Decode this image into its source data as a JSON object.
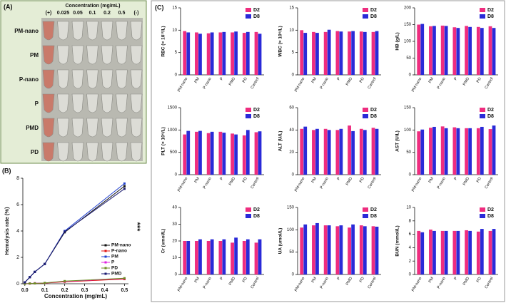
{
  "panel_a": {
    "label": "(A)",
    "title": "Concentration (mg/mL)",
    "concentrations": [
      "(+)",
      "0.025",
      "0.05",
      "0.1",
      "0.2",
      "0.5",
      "(-)"
    ],
    "rows": [
      "PM-nano",
      "PM",
      "P-nano",
      "P",
      "PMD",
      "PD"
    ]
  },
  "panel_b_label": "(B)",
  "panel_c_label": "(C)",
  "chart_data": [
    {
      "type": "line",
      "xlabel": "Concentration (mg/mL)",
      "ylabel": "Hemolysis rate (%)",
      "annotation": "***",
      "x": [
        0,
        0.025,
        0.05,
        0.1,
        0.2,
        0.5
      ],
      "xlim": [
        -0.01,
        0.52
      ],
      "xticks": [
        {
          "value": 0,
          "label": "0.0"
        },
        0.1,
        0.2,
        0.3,
        0.4,
        0.5
      ],
      "ylim": [
        0,
        8
      ],
      "yticks": [
        0,
        2,
        4,
        6,
        8
      ],
      "series": [
        {
          "name": "PM-nano",
          "color": "#111111",
          "values": [
            0.1,
            0.5,
            0.9,
            1.5,
            3.9,
            7.4
          ]
        },
        {
          "name": "P-nano",
          "color": "#e01010",
          "values": [
            0,
            0.02,
            0.03,
            0.05,
            0.15,
            0.35
          ]
        },
        {
          "name": "PM",
          "color": "#1f3fd0",
          "values": [
            0.1,
            0.5,
            0.9,
            1.5,
            4.0,
            7.6
          ]
        },
        {
          "name": "P",
          "color": "#e020e0",
          "values": [
            0,
            0.02,
            0.04,
            0.06,
            0.18,
            0.4
          ]
        },
        {
          "name": "PD",
          "color": "#6b8e23",
          "values": [
            0,
            0.02,
            0.03,
            0.06,
            0.2,
            0.42
          ]
        },
        {
          "name": "PMD",
          "color": "#1a1a70",
          "values": [
            0.1,
            0.5,
            0.9,
            1.5,
            3.95,
            7.2
          ]
        }
      ]
    },
    {
      "type": "bar",
      "ylabel": "RBC (× 10¹²/L)",
      "categories": [
        "PM-nano",
        "PM",
        "P-nano",
        "P",
        "PMD",
        "PD",
        "Control"
      ],
      "ylim": [
        0,
        15
      ],
      "yticks": [
        0,
        5,
        10,
        15
      ],
      "series": [
        {
          "name": "D2",
          "color": "#ee2d7f",
          "values": [
            9.8,
            9.5,
            9.3,
            9.5,
            9.5,
            9.4,
            9.6
          ]
        },
        {
          "name": "D8",
          "color": "#2a2ad8",
          "values": [
            9.5,
            9.2,
            9.5,
            9.6,
            9.7,
            9.6,
            9.2
          ]
        }
      ]
    },
    {
      "type": "bar",
      "ylabel": "WBC (× 10⁹/L)",
      "categories": [
        "PM-nano",
        "PM",
        "P-nano",
        "P",
        "PMD",
        "PD",
        "Control"
      ],
      "ylim": [
        0,
        15
      ],
      "yticks": [
        0,
        5,
        10,
        15
      ],
      "series": [
        {
          "name": "D2",
          "color": "#ee2d7f",
          "values": [
            10,
            9.6,
            9.6,
            9.8,
            9.7,
            9.7,
            9.6
          ]
        },
        {
          "name": "D8",
          "color": "#2a2ad8",
          "values": [
            9.4,
            9.4,
            10.1,
            9.7,
            9.8,
            9.6,
            9.8
          ]
        }
      ]
    },
    {
      "type": "bar",
      "ylabel": "HB (g/L)",
      "categories": [
        "PM-nano",
        "PM",
        "P-nano",
        "P",
        "PMD",
        "PD",
        "Control"
      ],
      "ylim": [
        0,
        200
      ],
      "yticks": [
        0,
        50,
        100,
        150,
        200
      ],
      "series": [
        {
          "name": "D2",
          "color": "#ee2d7f",
          "values": [
            150,
            145,
            147,
            142,
            146,
            143,
            145
          ]
        },
        {
          "name": "D8",
          "color": "#2a2ad8",
          "values": [
            152,
            146,
            146,
            140,
            143,
            140,
            140
          ]
        }
      ]
    },
    {
      "type": "bar",
      "ylabel": "PLT (× 10⁹/L)",
      "categories": [
        "PM-nano",
        "PM",
        "P-nano",
        "P",
        "PMD",
        "PD",
        "Control"
      ],
      "ylim": [
        0,
        1500
      ],
      "yticks": [
        0,
        500,
        1000,
        1500
      ],
      "series": [
        {
          "name": "D2",
          "color": "#ee2d7f",
          "values": [
            900,
            960,
            930,
            960,
            920,
            880,
            950
          ]
        },
        {
          "name": "D8",
          "color": "#2a2ad8",
          "values": [
            980,
            980,
            960,
            940,
            900,
            1000,
            970
          ]
        }
      ]
    },
    {
      "type": "bar",
      "ylabel": "ALT (U/L)",
      "categories": [
        "PM-nano",
        "PM",
        "P-nano",
        "P",
        "PMD",
        "PD",
        "Control"
      ],
      "ylim": [
        0,
        60
      ],
      "yticks": [
        0,
        20,
        40,
        60
      ],
      "series": [
        {
          "name": "D2",
          "color": "#ee2d7f",
          "values": [
            41,
            40,
            41,
            40,
            44,
            41,
            42
          ]
        },
        {
          "name": "D8",
          "color": "#2a2ad8",
          "values": [
            43,
            41,
            40,
            41,
            39,
            40,
            41
          ]
        }
      ]
    },
    {
      "type": "bar",
      "ylabel": "AST (U/L)",
      "categories": [
        "PM-nano",
        "PM",
        "P-nano",
        "P",
        "PMD",
        "PD",
        "Control"
      ],
      "ylim": [
        0,
        150
      ],
      "yticks": [
        0,
        50,
        100,
        150
      ],
      "series": [
        {
          "name": "D2",
          "color": "#ee2d7f",
          "values": [
            97,
            105,
            108,
            106,
            104,
            104,
            102
          ]
        },
        {
          "name": "D8",
          "color": "#2a2ad8",
          "values": [
            101,
            107,
            104,
            104,
            104,
            107,
            110
          ]
        }
      ]
    },
    {
      "type": "bar",
      "ylabel": "Cr (umol/L)",
      "categories": [
        "PM-nano",
        "PM",
        "P-nano",
        "P",
        "PMD",
        "PD",
        "Control"
      ],
      "ylim": [
        0,
        40
      ],
      "yticks": [
        0,
        10,
        20,
        30,
        40
      ],
      "series": [
        {
          "name": "D2",
          "color": "#ee2d7f",
          "values": [
            20,
            20,
            20,
            20,
            19,
            20,
            19
          ]
        },
        {
          "name": "D8",
          "color": "#2a2ad8",
          "values": [
            20,
            21,
            21,
            21,
            22,
            21,
            21
          ]
        }
      ]
    },
    {
      "type": "bar",
      "ylabel": "UA (umol/L)",
      "categories": [
        "PM-nano",
        "PM",
        "P-nano",
        "P",
        "PMD",
        "PD",
        "Control"
      ],
      "ylim": [
        0,
        150
      ],
      "yticks": [
        0,
        50,
        100,
        150
      ],
      "series": [
        {
          "name": "D2",
          "color": "#ee2d7f",
          "values": [
            105,
            110,
            110,
            108,
            105,
            110,
            108
          ]
        },
        {
          "name": "D8",
          "color": "#2a2ad8",
          "values": [
            112,
            115,
            110,
            110,
            112,
            108,
            107
          ]
        }
      ]
    },
    {
      "type": "bar",
      "ylabel": "BUN (mmol/L)",
      "categories": [
        "PM-nano",
        "PM",
        "P-nano",
        "P",
        "PMD",
        "PD",
        "Control"
      ],
      "ylim": [
        0,
        10
      ],
      "yticks": [
        0,
        2,
        4,
        6,
        8,
        10
      ],
      "series": [
        {
          "name": "D2",
          "color": "#ee2d7f",
          "values": [
            6.5,
            6.7,
            6.5,
            6.5,
            6.6,
            6.4,
            6.5
          ]
        },
        {
          "name": "D8",
          "color": "#2a2ad8",
          "values": [
            6.3,
            6.5,
            6.5,
            6.5,
            6.5,
            6.8,
            6.8
          ]
        }
      ]
    }
  ]
}
